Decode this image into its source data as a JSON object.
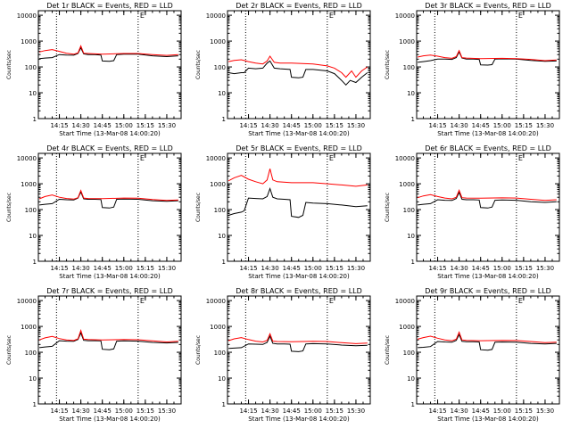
{
  "colors": {
    "events": "#000000",
    "lld": "#ff0000",
    "axis": "#000000"
  },
  "shared": {
    "ylabel": "Counts/sec",
    "xlabel": "Start Time (13-Mar-08 14:00:20)",
    "x_ticks": [
      "14:15",
      "14:30",
      "14:45",
      "15:00",
      "15:15",
      "15:30"
    ],
    "y_ticks": [
      "1",
      "10",
      "100",
      "1000",
      "10000"
    ],
    "ylim": [
      1,
      15000
    ],
    "xlim": [
      "14:00:20",
      "15:40"
    ],
    "y_scale": "log",
    "marker_label": "E",
    "dotted_vlines": [
      "14:13",
      "15:10"
    ]
  },
  "chart_data": [
    {
      "type": "line",
      "title": "Det 1r BLACK = Events, RED = LLD",
      "series": [
        {
          "name": "Events",
          "x": [
            "14:01",
            "14:05",
            "14:10",
            "14:15",
            "14:20",
            "14:25",
            "14:28",
            "14:30",
            "14:32",
            "14:35",
            "14:40",
            "14:44",
            "14:45",
            "14:50",
            "14:53",
            "14:55",
            "15:00",
            "15:10",
            "15:20",
            "15:30",
            "15:38"
          ],
          "values": [
            210,
            220,
            230,
            300,
            290,
            285,
            330,
            550,
            320,
            300,
            300,
            290,
            170,
            165,
            175,
            300,
            310,
            310,
            270,
            250,
            270
          ]
        },
        {
          "name": "LLD",
          "x": [
            "14:01",
            "14:05",
            "14:10",
            "14:15",
            "14:20",
            "14:25",
            "14:28",
            "14:30",
            "14:32",
            "14:35",
            "14:45",
            "15:00",
            "15:10",
            "15:20",
            "15:30",
            "15:38"
          ],
          "values": [
            380,
            430,
            470,
            400,
            340,
            310,
            350,
            650,
            340,
            330,
            310,
            330,
            330,
            300,
            280,
            300
          ]
        }
      ]
    },
    {
      "type": "line",
      "title": "Det 2r BLACK = Events, RED = LLD",
      "series": [
        {
          "name": "Events",
          "x": [
            "14:01",
            "14:05",
            "14:10",
            "14:12",
            "14:15",
            "14:20",
            "14:25",
            "14:28",
            "14:30",
            "14:33",
            "14:37",
            "14:44",
            "14:45",
            "14:50",
            "14:53",
            "14:55",
            "15:00",
            "15:10",
            "15:15",
            "15:20",
            "15:23",
            "15:26",
            "15:30",
            "15:34",
            "15:38"
          ],
          "values": [
            60,
            55,
            60,
            60,
            90,
            85,
            90,
            140,
            170,
            90,
            85,
            80,
            40,
            38,
            40,
            80,
            80,
            70,
            55,
            30,
            20,
            30,
            25,
            40,
            60
          ]
        },
        {
          "name": "LLD",
          "x": [
            "14:01",
            "14:05",
            "14:10",
            "14:15",
            "14:20",
            "14:25",
            "14:28",
            "14:30",
            "14:33",
            "14:37",
            "14:45",
            "15:00",
            "15:10",
            "15:15",
            "15:20",
            "15:23",
            "15:27",
            "15:30",
            "15:34",
            "15:38"
          ],
          "values": [
            160,
            180,
            190,
            160,
            140,
            130,
            170,
            260,
            150,
            140,
            140,
            130,
            110,
            90,
            60,
            40,
            70,
            40,
            70,
            100
          ]
        }
      ]
    },
    {
      "type": "line",
      "title": "Det 3r BLACK = Events, RED = LLD",
      "series": [
        {
          "name": "Events",
          "x": [
            "14:01",
            "14:05",
            "14:10",
            "14:15",
            "14:20",
            "14:25",
            "14:28",
            "14:30",
            "14:32",
            "14:35",
            "14:40",
            "14:44",
            "14:45",
            "14:50",
            "14:53",
            "14:55",
            "15:00",
            "15:10",
            "15:20",
            "15:30",
            "15:38"
          ],
          "values": [
            150,
            160,
            175,
            200,
            200,
            195,
            230,
            380,
            220,
            200,
            200,
            195,
            120,
            118,
            122,
            200,
            205,
            200,
            180,
            165,
            170
          ]
        },
        {
          "name": "LLD",
          "x": [
            "14:01",
            "14:05",
            "14:10",
            "14:15",
            "14:20",
            "14:25",
            "14:28",
            "14:30",
            "14:32",
            "14:35",
            "14:45",
            "15:00",
            "15:10",
            "15:20",
            "15:30",
            "15:38"
          ],
          "values": [
            240,
            270,
            290,
            260,
            230,
            215,
            250,
            430,
            230,
            220,
            210,
            215,
            210,
            195,
            175,
            185
          ]
        }
      ]
    },
    {
      "type": "line",
      "title": "Det 4r BLACK = Events, RED = LLD",
      "series": [
        {
          "name": "Events",
          "x": [
            "14:01",
            "14:05",
            "14:10",
            "14:15",
            "14:20",
            "14:25",
            "14:28",
            "14:30",
            "14:32",
            "14:35",
            "14:40",
            "14:44",
            "14:45",
            "14:50",
            "14:53",
            "14:55",
            "15:00",
            "15:10",
            "15:20",
            "15:30",
            "15:38"
          ],
          "values": [
            150,
            160,
            170,
            250,
            240,
            235,
            280,
            480,
            260,
            250,
            250,
            245,
            120,
            115,
            125,
            250,
            255,
            250,
            220,
            210,
            220
          ]
        },
        {
          "name": "LLD",
          "x": [
            "14:01",
            "14:05",
            "14:10",
            "14:15",
            "14:20",
            "14:25",
            "14:28",
            "14:30",
            "14:32",
            "14:35",
            "14:45",
            "15:00",
            "15:10",
            "15:20",
            "15:30",
            "15:38"
          ],
          "values": [
            260,
            320,
            370,
            300,
            270,
            255,
            290,
            550,
            280,
            270,
            265,
            280,
            275,
            245,
            225,
            235
          ]
        }
      ]
    },
    {
      "type": "line",
      "title": "Det 5r BLACK = Events, RED = LLD",
      "series": [
        {
          "name": "Events",
          "x": [
            "14:01",
            "14:05",
            "14:10",
            "14:12",
            "14:15",
            "14:20",
            "14:25",
            "14:28",
            "14:30",
            "14:32",
            "14:35",
            "14:40",
            "14:44",
            "14:45",
            "14:50",
            "14:53",
            "14:55",
            "15:00",
            "15:10",
            "15:20",
            "15:30",
            "15:38"
          ],
          "values": [
            60,
            70,
            80,
            90,
            280,
            270,
            260,
            320,
            650,
            300,
            260,
            250,
            240,
            55,
            50,
            60,
            190,
            180,
            170,
            150,
            130,
            140
          ]
        },
        {
          "name": "LLD",
          "x": [
            "14:01",
            "14:05",
            "14:10",
            "14:15",
            "14:20",
            "14:25",
            "14:28",
            "14:30",
            "14:32",
            "14:35",
            "14:45",
            "15:00",
            "15:10",
            "15:20",
            "15:30",
            "15:38"
          ],
          "values": [
            1300,
            1700,
            2100,
            1500,
            1200,
            1000,
            1400,
            3800,
            1400,
            1200,
            1100,
            1100,
            1000,
            900,
            800,
            900
          ]
        }
      ]
    },
    {
      "type": "line",
      "title": "Det 6r BLACK = Events, RED = LLD",
      "series": [
        {
          "name": "Events",
          "x": [
            "14:01",
            "14:05",
            "14:10",
            "14:15",
            "14:20",
            "14:25",
            "14:28",
            "14:30",
            "14:32",
            "14:35",
            "14:40",
            "14:44",
            "14:45",
            "14:50",
            "14:53",
            "14:55",
            "15:00",
            "15:10",
            "15:20",
            "15:30",
            "15:38"
          ],
          "values": [
            150,
            160,
            170,
            240,
            230,
            225,
            270,
            460,
            250,
            240,
            240,
            235,
            120,
            115,
            125,
            230,
            235,
            230,
            200,
            190,
            200
          ]
        },
        {
          "name": "LLD",
          "x": [
            "14:01",
            "14:05",
            "14:10",
            "14:15",
            "14:20",
            "14:25",
            "14:28",
            "14:30",
            "14:32",
            "14:35",
            "14:45",
            "15:00",
            "15:10",
            "15:20",
            "15:30",
            "15:38"
          ],
          "values": [
            290,
            340,
            380,
            320,
            280,
            260,
            300,
            560,
            290,
            280,
            275,
            285,
            280,
            250,
            225,
            240
          ]
        }
      ]
    },
    {
      "type": "line",
      "title": "Det 7r BLACK = Events, RED = LLD",
      "series": [
        {
          "name": "Events",
          "x": [
            "14:01",
            "14:05",
            "14:10",
            "14:15",
            "14:20",
            "14:25",
            "14:28",
            "14:30",
            "14:32",
            "14:35",
            "14:40",
            "14:44",
            "14:45",
            "14:50",
            "14:53",
            "14:55",
            "15:00",
            "15:10",
            "15:20",
            "15:30",
            "15:38"
          ],
          "values": [
            150,
            160,
            170,
            280,
            270,
            265,
            310,
            560,
            290,
            280,
            280,
            275,
            130,
            125,
            135,
            270,
            275,
            270,
            240,
            230,
            240
          ]
        },
        {
          "name": "LLD",
          "x": [
            "14:01",
            "14:05",
            "14:10",
            "14:15",
            "14:20",
            "14:25",
            "14:28",
            "14:30",
            "14:32",
            "14:35",
            "14:45",
            "15:00",
            "15:10",
            "15:20",
            "15:30",
            "15:38"
          ],
          "values": [
            300,
            360,
            410,
            340,
            300,
            285,
            330,
            700,
            320,
            310,
            300,
            310,
            305,
            275,
            250,
            265
          ]
        }
      ]
    },
    {
      "type": "line",
      "title": "Det 8r BLACK = Events, RED = LLD",
      "series": [
        {
          "name": "Events",
          "x": [
            "14:01",
            "14:05",
            "14:10",
            "14:15",
            "14:20",
            "14:25",
            "14:28",
            "14:30",
            "14:32",
            "14:35",
            "14:40",
            "14:44",
            "14:45",
            "14:50",
            "14:53",
            "14:55",
            "15:00",
            "15:10",
            "15:20",
            "15:30",
            "15:38"
          ],
          "values": [
            140,
            145,
            150,
            210,
            205,
            200,
            240,
            420,
            220,
            210,
            210,
            205,
            110,
            105,
            112,
            210,
            215,
            210,
            190,
            180,
            185
          ]
        },
        {
          "name": "LLD",
          "x": [
            "14:01",
            "14:05",
            "14:10",
            "14:15",
            "14:20",
            "14:25",
            "14:28",
            "14:30",
            "14:32",
            "14:35",
            "14:45",
            "15:00",
            "15:10",
            "15:20",
            "15:30",
            "15:38"
          ],
          "values": [
            280,
            330,
            370,
            310,
            270,
            250,
            290,
            520,
            270,
            260,
            255,
            265,
            260,
            235,
            215,
            225
          ]
        }
      ]
    },
    {
      "type": "line",
      "title": "Det 9r BLACK = Events, RED = LLD",
      "series": [
        {
          "name": "Events",
          "x": [
            "14:01",
            "14:05",
            "14:10",
            "14:15",
            "14:20",
            "14:25",
            "14:28",
            "14:30",
            "14:32",
            "14:35",
            "14:40",
            "14:44",
            "14:45",
            "14:50",
            "14:53",
            "14:55",
            "15:00",
            "15:10",
            "15:20",
            "15:30",
            "15:38"
          ],
          "values": [
            150,
            155,
            165,
            260,
            250,
            245,
            290,
            480,
            265,
            255,
            255,
            250,
            125,
            120,
            128,
            245,
            250,
            245,
            220,
            210,
            220
          ]
        },
        {
          "name": "LLD",
          "x": [
            "14:01",
            "14:05",
            "14:10",
            "14:15",
            "14:20",
            "14:25",
            "14:28",
            "14:30",
            "14:32",
            "14:35",
            "14:45",
            "15:00",
            "15:10",
            "15:20",
            "15:30",
            "15:38"
          ],
          "values": [
            320,
            370,
            420,
            350,
            300,
            280,
            320,
            600,
            300,
            290,
            280,
            290,
            285,
            260,
            235,
            245
          ]
        }
      ]
    }
  ]
}
